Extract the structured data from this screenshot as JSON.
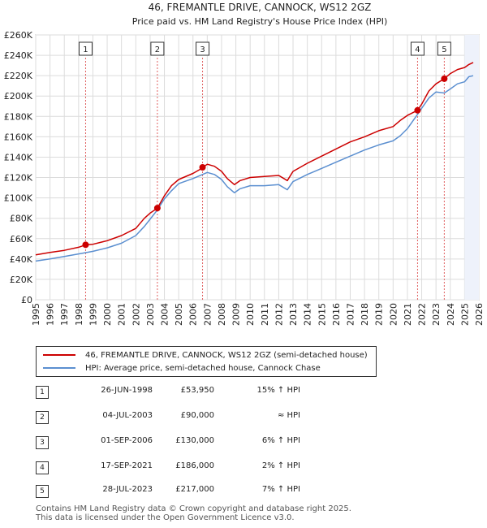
{
  "chart_data": {
    "type": "line",
    "title": "46, FREMANTLE DRIVE, CANNOCK, WS12 2GZ",
    "subtitle": "Price paid vs. HM Land Registry's House Price Index (HPI)",
    "xlim": [
      1995,
      2026
    ],
    "ylim": [
      0,
      260000
    ],
    "yticks": [
      0,
      20000,
      40000,
      60000,
      80000,
      100000,
      120000,
      140000,
      160000,
      180000,
      200000,
      220000,
      240000,
      260000
    ],
    "ytick_labels": [
      "£0",
      "£20K",
      "£40K",
      "£60K",
      "£80K",
      "£100K",
      "£120K",
      "£140K",
      "£160K",
      "£180K",
      "£200K",
      "£220K",
      "£240K",
      "£260K"
    ],
    "xticks": [
      1995,
      1996,
      1997,
      1998,
      1999,
      2000,
      2001,
      2002,
      2003,
      2004,
      2005,
      2006,
      2007,
      2008,
      2009,
      2010,
      2011,
      2012,
      2013,
      2014,
      2015,
      2016,
      2017,
      2018,
      2019,
      2020,
      2021,
      2022,
      2023,
      2024,
      2025,
      2026
    ],
    "grid": true,
    "series": [
      {
        "name": "46, FREMANTLE DRIVE, CANNOCK, WS12 2GZ (semi-detached house)",
        "color": "#cc0000",
        "x": [
          1995.0,
          1996.0,
          1997.0,
          1998.0,
          1998.49,
          1999.0,
          2000.0,
          2001.0,
          2002.0,
          2002.6,
          2003.0,
          2003.51,
          2004.0,
          2004.5,
          2005.0,
          2006.0,
          2006.5,
          2006.67,
          2007.0,
          2007.5,
          2008.0,
          2008.4,
          2008.9,
          2009.3,
          2010.0,
          2011.0,
          2012.0,
          2012.6,
          2013.0,
          2014.0,
          2015.0,
          2016.0,
          2017.0,
          2018.0,
          2019.0,
          2020.0,
          2020.5,
          2021.0,
          2021.71,
          2022.0,
          2022.5,
          2023.0,
          2023.58,
          2024.0,
          2024.5,
          2025.0,
          2025.3,
          2025.6
        ],
        "values": [
          44000,
          46500,
          48500,
          51500,
          53950,
          54500,
          58000,
          63000,
          70000,
          80000,
          85000,
          90000,
          102000,
          112000,
          118000,
          124000,
          128000,
          130000,
          133000,
          131000,
          126000,
          119000,
          113000,
          117000,
          120000,
          121000,
          122000,
          117000,
          126000,
          134000,
          141000,
          148000,
          155000,
          160000,
          166000,
          170000,
          176000,
          181000,
          186000,
          192000,
          205000,
          212000,
          217000,
          222000,
          226000,
          228000,
          231000,
          233000
        ]
      },
      {
        "name": "HPI: Average price, semi-detached house, Cannock Chase",
        "color": "#5b8fd0",
        "x": [
          1995.0,
          1996.0,
          1997.0,
          1998.0,
          1999.0,
          2000.0,
          2001.0,
          2002.0,
          2002.6,
          2003.0,
          2003.5,
          2004.0,
          2004.5,
          2005.0,
          2006.0,
          2006.67,
          2007.0,
          2007.5,
          2008.0,
          2008.4,
          2008.9,
          2009.3,
          2010.0,
          2011.0,
          2012.0,
          2012.6,
          2013.0,
          2014.0,
          2015.0,
          2016.0,
          2017.0,
          2018.0,
          2019.0,
          2020.0,
          2020.5,
          2021.0,
          2021.71,
          2022.0,
          2022.5,
          2023.0,
          2023.58,
          2024.0,
          2024.5,
          2025.0,
          2025.3,
          2025.6
        ],
        "values": [
          38000,
          40000,
          42500,
          45000,
          47500,
          51000,
          55500,
          63000,
          72000,
          79000,
          88000,
          99000,
          107000,
          114000,
          119000,
          123000,
          125000,
          123000,
          118000,
          111000,
          105000,
          109000,
          112000,
          112000,
          113000,
          108000,
          116000,
          123000,
          129000,
          135000,
          141000,
          147000,
          152000,
          156000,
          161000,
          168000,
          182000,
          188000,
          198000,
          204000,
          203000,
          207000,
          212000,
          214000,
          219000,
          220000
        ]
      }
    ],
    "sales": [
      {
        "label": "1",
        "x": 1998.49,
        "value": 53950
      },
      {
        "label": "2",
        "x": 2003.51,
        "value": 90000
      },
      {
        "label": "3",
        "x": 2006.67,
        "value": 130000
      },
      {
        "label": "4",
        "x": 2021.71,
        "value": 186000
      },
      {
        "label": "5",
        "x": 2023.58,
        "value": 217000
      }
    ]
  },
  "legend": [
    {
      "label": "46, FREMANTLE DRIVE, CANNOCK, WS12 2GZ (semi-detached house)",
      "color": "#cc0000"
    },
    {
      "label": "HPI: Average price, semi-detached house, Cannock Chase",
      "color": "#5b8fd0"
    }
  ],
  "transactions": [
    {
      "num": "1",
      "date": "26-JUN-1998",
      "price": "£53,950",
      "relation": "15% ↑ HPI"
    },
    {
      "num": "2",
      "date": "04-JUL-2003",
      "price": "£90,000",
      "relation": "≈ HPI"
    },
    {
      "num": "3",
      "date": "01-SEP-2006",
      "price": "£130,000",
      "relation": "6% ↑ HPI"
    },
    {
      "num": "4",
      "date": "17-SEP-2021",
      "price": "£186,000",
      "relation": "2% ↑ HPI"
    },
    {
      "num": "5",
      "date": "28-JUL-2023",
      "price": "£217,000",
      "relation": "7% ↑ HPI"
    }
  ],
  "footer": {
    "line1": "Contains HM Land Registry data © Crown copyright and database right 2025.",
    "line2": "This data is licensed under the Open Government Licence v3.0."
  }
}
